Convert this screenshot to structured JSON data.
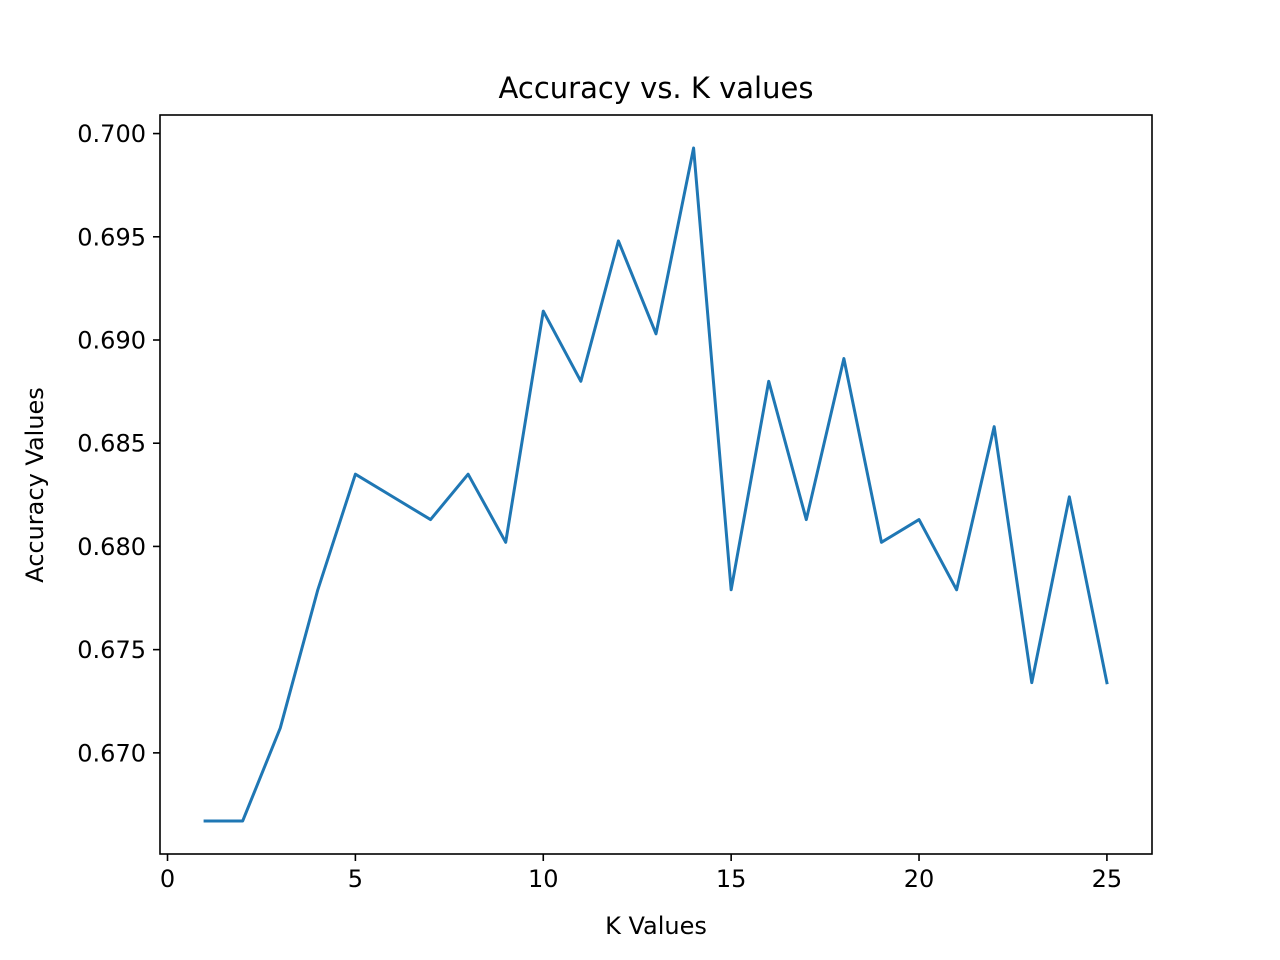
{
  "chart_data": {
    "type": "line",
    "title": "Accuracy vs. K values",
    "xlabel": "K Values",
    "ylabel": "Accuracy Values",
    "xlim": [
      -0.2,
      26.2
    ],
    "ylim": [
      0.6651,
      0.7009
    ],
    "x_ticks": [
      0,
      5,
      10,
      15,
      20,
      25
    ],
    "y_ticks": [
      0.67,
      0.675,
      0.68,
      0.685,
      0.69,
      0.695,
      0.7
    ],
    "x_tick_labels": [
      "0",
      "5",
      "10",
      "15",
      "20",
      "25"
    ],
    "y_tick_labels": [
      "0.670",
      "0.675",
      "0.680",
      "0.685",
      "0.690",
      "0.695",
      "0.700"
    ],
    "grid": false,
    "series": [
      {
        "name": "Accuracy",
        "color": "#1f77b4",
        "x": [
          1,
          2,
          3,
          4,
          5,
          6,
          7,
          8,
          9,
          10,
          11,
          12,
          13,
          14,
          15,
          16,
          17,
          18,
          19,
          20,
          21,
          22,
          23,
          24,
          25
        ],
        "y": [
          0.6667,
          0.6667,
          0.6712,
          0.6779,
          0.6835,
          0.6824,
          0.6813,
          0.6835,
          0.6802,
          0.6914,
          0.688,
          0.6948,
          0.6903,
          0.6993,
          0.6779,
          0.688,
          0.6813,
          0.6891,
          0.6802,
          0.6813,
          0.6779,
          0.6858,
          0.6734,
          0.6824,
          0.6734
        ]
      }
    ]
  }
}
